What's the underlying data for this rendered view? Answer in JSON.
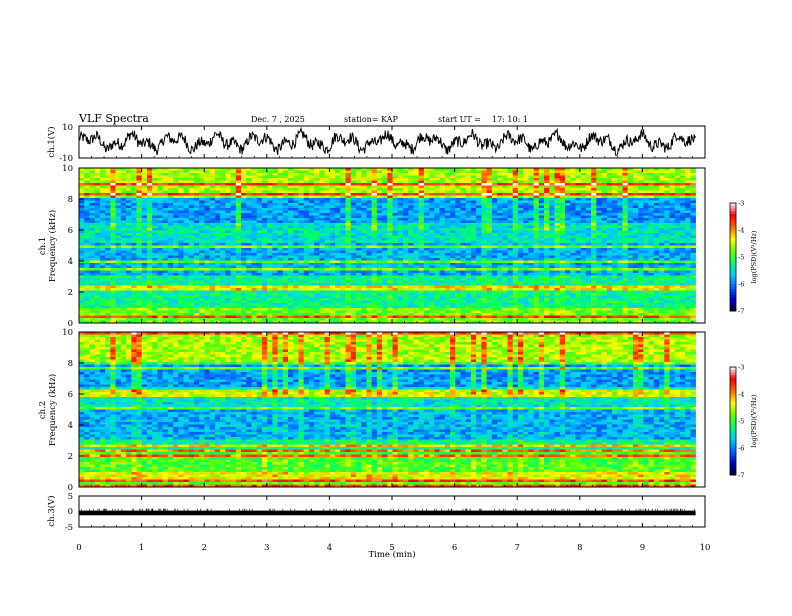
{
  "header": {
    "title": "VLF Spectra",
    "date": "Dec. 7 , 2025",
    "station": "station= KAP",
    "start_label": "start  UT =",
    "start_time": "17: 10: 1"
  },
  "colors": {
    "trace": "#000000",
    "colormap": [
      "#000033",
      "#0000cc",
      "#0066ff",
      "#00ccff",
      "#00ff66",
      "#66ff00",
      "#ffff00",
      "#ff6600",
      "#ff0000",
      "#ffffff"
    ]
  },
  "chart_data": [
    {
      "type": "line",
      "id": "ch1-waveform",
      "ylabel": "ch.1(V)",
      "ylim": [
        -10,
        10
      ],
      "yticks": [
        "10",
        "-10"
      ],
      "x_range_min": [
        0,
        9.85
      ],
      "description": "voltage waveform oscillating roughly between -10 and 10 V"
    },
    {
      "type": "heatmap",
      "id": "ch1-spectrogram",
      "ylabel": "ch.1",
      "ylabel2": "Frequency  (kHz)",
      "ylim": [
        0,
        10
      ],
      "yticks": [
        "0",
        "2",
        "4",
        "6",
        "8",
        "10"
      ],
      "x_range_min": [
        0,
        9.85
      ],
      "colorbar": {
        "label": "log(PSD)(V²/Hz)",
        "range": [
          -7,
          -3
        ],
        "ticks": [
          "-3",
          "-4",
          "-5",
          "-6",
          "-7"
        ]
      }
    },
    {
      "type": "heatmap",
      "id": "ch2-spectrogram",
      "ylabel": "ch.2",
      "ylabel2": "Frequency  (kHz)",
      "ylim": [
        0,
        10
      ],
      "yticks": [
        "0",
        "2",
        "4",
        "6",
        "8",
        "10"
      ],
      "x_range_min": [
        0,
        9.85
      ],
      "colorbar": {
        "label": "log(PSD)(V²/Hz)",
        "range": [
          -7,
          -3
        ],
        "ticks": [
          "-3",
          "-4",
          "-5",
          "-6",
          "-7"
        ]
      }
    },
    {
      "type": "line",
      "id": "ch3-waveform",
      "ylabel": "ch.3(V)",
      "ylim": [
        -5,
        5
      ],
      "yticks": [
        "5",
        "0",
        "-5"
      ],
      "x_range_min": [
        0,
        9.85
      ],
      "description": "near-constant level around -0.5 V with small dense ticks"
    }
  ],
  "xaxis": {
    "label": "Time  (min)",
    "range": [
      0,
      10
    ],
    "ticks": [
      "0",
      "1",
      "2",
      "3",
      "4",
      "5",
      "6",
      "7",
      "8",
      "9",
      "10"
    ]
  }
}
